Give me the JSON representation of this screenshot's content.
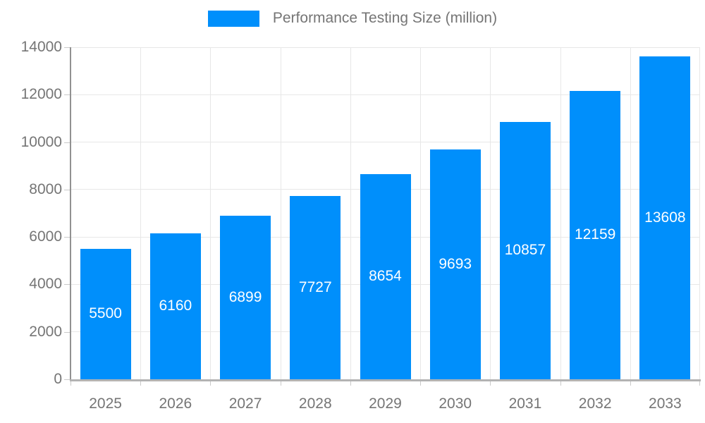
{
  "legend": {
    "label": "Performance Testing Size (million)",
    "swatch_color": "#008FFB"
  },
  "chart_data": {
    "type": "bar",
    "title": "Performance Testing Size (million)",
    "categories": [
      "2025",
      "2026",
      "2027",
      "2028",
      "2029",
      "2030",
      "2031",
      "2032",
      "2033"
    ],
    "values": [
      5500,
      6160,
      6899,
      7727,
      8654,
      9693,
      10857,
      12159,
      13608
    ],
    "xlabel": "",
    "ylabel": "",
    "ylim": [
      0,
      14000
    ],
    "ytick_step": 2000,
    "yticks": [
      0,
      2000,
      4000,
      6000,
      8000,
      10000,
      12000,
      14000
    ],
    "grid": true,
    "legend_position": "top",
    "bar_color": "#008FFB",
    "bar_label_color": "#ffffff",
    "axis_text_color": "#757575",
    "grid_color": "#e7e7e7"
  }
}
